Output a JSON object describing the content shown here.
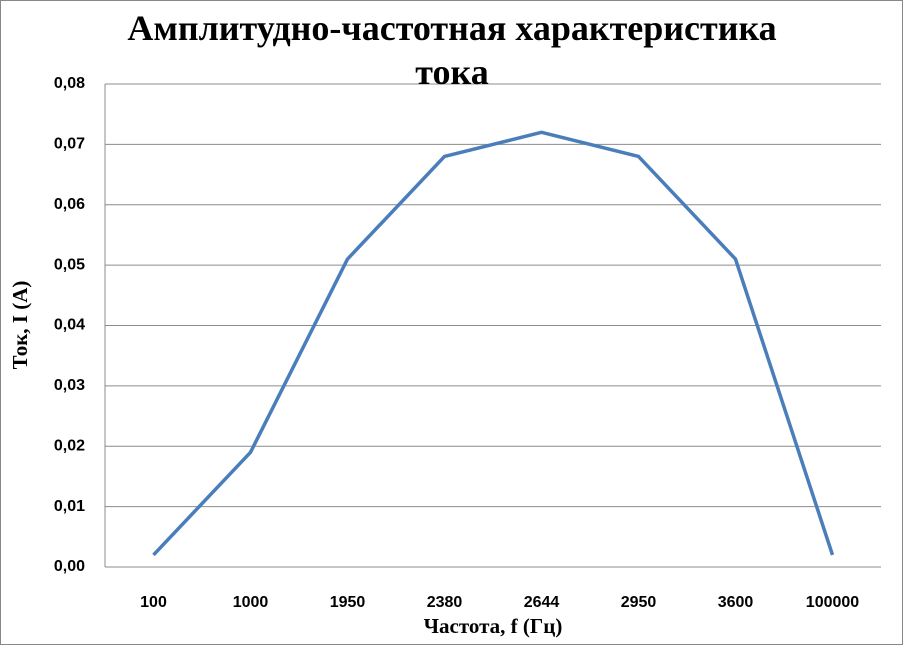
{
  "chart_data": {
    "type": "line",
    "title": "Амплитудно-частотная характеристика тока",
    "x_label": "Частота, f (Гц)",
    "y_label": "Ток, I (A)",
    "categories": [
      "100",
      "1000",
      "1950",
      "2380",
      "2644",
      "2950",
      "3600",
      "100000"
    ],
    "values": [
      0.002,
      0.019,
      0.051,
      0.068,
      0.072,
      0.068,
      0.051,
      0.002
    ],
    "color": "#4a7ebb",
    "ylim": [
      0,
      0.08
    ],
    "yticks": [
      {
        "value": 0,
        "label": "0,00"
      },
      {
        "value": 0.01,
        "label": "0,01"
      },
      {
        "value": 0.02,
        "label": "0,02"
      },
      {
        "value": 0.03,
        "label": "0,03"
      },
      {
        "value": 0.04,
        "label": "0,04"
      },
      {
        "value": 0.05,
        "label": "0,05"
      },
      {
        "value": 0.06,
        "label": "0,06"
      },
      {
        "value": 0.07,
        "label": "0,07"
      },
      {
        "value": 0.08,
        "label": "0,08"
      }
    ],
    "grid": true
  }
}
